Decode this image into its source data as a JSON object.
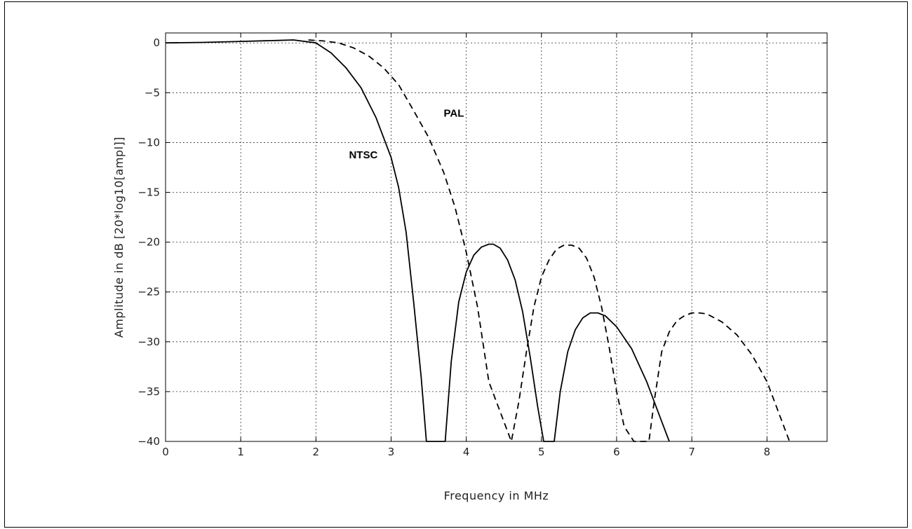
{
  "chart_data": {
    "type": "line",
    "title": "",
    "xlabel": "Frequency in MHz",
    "ylabel": "Amplitude in dB [20*log10[ampl]]",
    "xlim": [
      0,
      8.8
    ],
    "ylim": [
      -40,
      1
    ],
    "grid": true,
    "x_ticks": [
      0,
      1,
      2,
      3,
      4,
      5,
      6,
      7,
      8
    ],
    "y_ticks": [
      0,
      -5,
      -10,
      -15,
      -20,
      -25,
      -30,
      -35,
      -40
    ],
    "annotations": [
      {
        "text": "PAL",
        "x": 3.7,
        "y": -7.4
      },
      {
        "text": "NTSC",
        "x": 2.44,
        "y": -11.6
      }
    ],
    "series": [
      {
        "name": "NTSC",
        "style": "solid",
        "color": "#000000",
        "x": [
          0,
          0.5,
          1.0,
          1.5,
          1.7,
          2.0,
          2.2,
          2.4,
          2.6,
          2.8,
          3.0,
          3.1,
          3.2,
          3.3,
          3.4,
          3.47,
          3.72,
          3.8,
          3.9,
          4.0,
          4.1,
          4.2,
          4.3,
          4.36,
          4.45,
          4.55,
          4.65,
          4.75,
          4.85,
          4.95,
          5.03,
          5.17,
          5.25,
          5.35,
          5.45,
          5.55,
          5.65,
          5.75,
          5.85,
          6.0,
          6.2,
          6.4,
          6.6,
          6.7
        ],
        "y": [
          0,
          0.05,
          0.15,
          0.25,
          0.3,
          0,
          -1.0,
          -2.5,
          -4.5,
          -7.5,
          -11.5,
          -14.5,
          -19,
          -26,
          -33.5,
          -40,
          -40,
          -32,
          -26,
          -23,
          -21.3,
          -20.5,
          -20.2,
          -20.2,
          -20.6,
          -21.8,
          -23.8,
          -27,
          -31.5,
          -36.5,
          -40,
          -40,
          -35,
          -31,
          -28.8,
          -27.6,
          -27.1,
          -27.1,
          -27.4,
          -28.5,
          -30.7,
          -34,
          -38,
          -40
        ]
      },
      {
        "name": "PAL",
        "style": "dashed",
        "color": "#000000",
        "x": [
          1.9,
          2.1,
          2.3,
          2.5,
          2.7,
          2.9,
          3.1,
          3.3,
          3.5,
          3.7,
          3.85,
          4.0,
          4.15,
          4.3,
          4.6,
          4.7,
          4.8,
          4.9,
          5.0,
          5.1,
          5.2,
          5.3,
          5.4,
          5.5,
          5.6,
          5.7,
          5.8,
          5.9,
          6.0,
          6.1,
          6.23,
          6.43,
          6.5,
          6.6,
          6.7,
          6.8,
          6.9,
          7.0,
          7.1,
          7.2,
          7.4,
          7.6,
          7.8,
          8.0,
          8.1,
          8.3
        ],
        "y": [
          0.3,
          0.2,
          0,
          -0.5,
          -1.3,
          -2.5,
          -4.2,
          -6.8,
          -9.5,
          -13,
          -16.5,
          -21,
          -26.5,
          -34,
          -40,
          -36,
          -31,
          -26.5,
          -23.5,
          -21.8,
          -20.7,
          -20.3,
          -20.3,
          -20.6,
          -21.6,
          -23.5,
          -26.5,
          -30.5,
          -35,
          -38.5,
          -40,
          -40,
          -36,
          -31,
          -29,
          -27.9,
          -27.4,
          -27.1,
          -27.1,
          -27.2,
          -28,
          -29.3,
          -31.3,
          -34,
          -36,
          -40
        ]
      }
    ]
  }
}
